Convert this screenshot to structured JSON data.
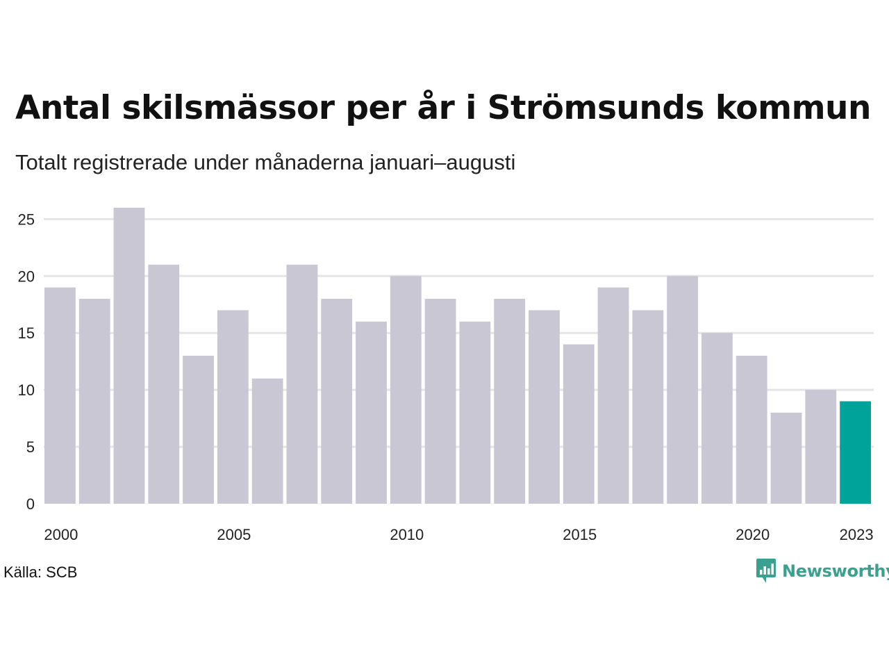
{
  "header": {
    "title": "Antal skilsmässor per år i Strömsunds kommun",
    "subtitle": "Totalt registrerade under månaderna januari–augusti"
  },
  "footer": {
    "source": "Källa: SCB",
    "brand": "Newsworthy"
  },
  "colors": {
    "bar": "#c8c7d3",
    "highlight": "#00a39a",
    "grid": "#e5e5e8",
    "brand": "#3aa08f"
  },
  "chart_data": {
    "type": "bar",
    "categories": [
      "2000",
      "2001",
      "2002",
      "2003",
      "2004",
      "2005",
      "2006",
      "2007",
      "2008",
      "2009",
      "2010",
      "2011",
      "2012",
      "2013",
      "2014",
      "2015",
      "2016",
      "2017",
      "2018",
      "2019",
      "2020",
      "2021",
      "2022",
      "2023"
    ],
    "values": [
      19,
      18,
      26,
      21,
      13,
      17,
      11,
      21,
      18,
      16,
      20,
      18,
      16,
      18,
      17,
      14,
      19,
      17,
      20,
      15,
      13,
      8,
      10,
      9
    ],
    "highlight": "2023",
    "x_tick_labels": [
      "2000",
      "2005",
      "2010",
      "2015",
      "2020",
      "2023"
    ],
    "y_ticks": [
      0,
      5,
      10,
      15,
      20,
      25
    ],
    "ylim": [
      0,
      26
    ],
    "grid": true,
    "legend": "none"
  }
}
